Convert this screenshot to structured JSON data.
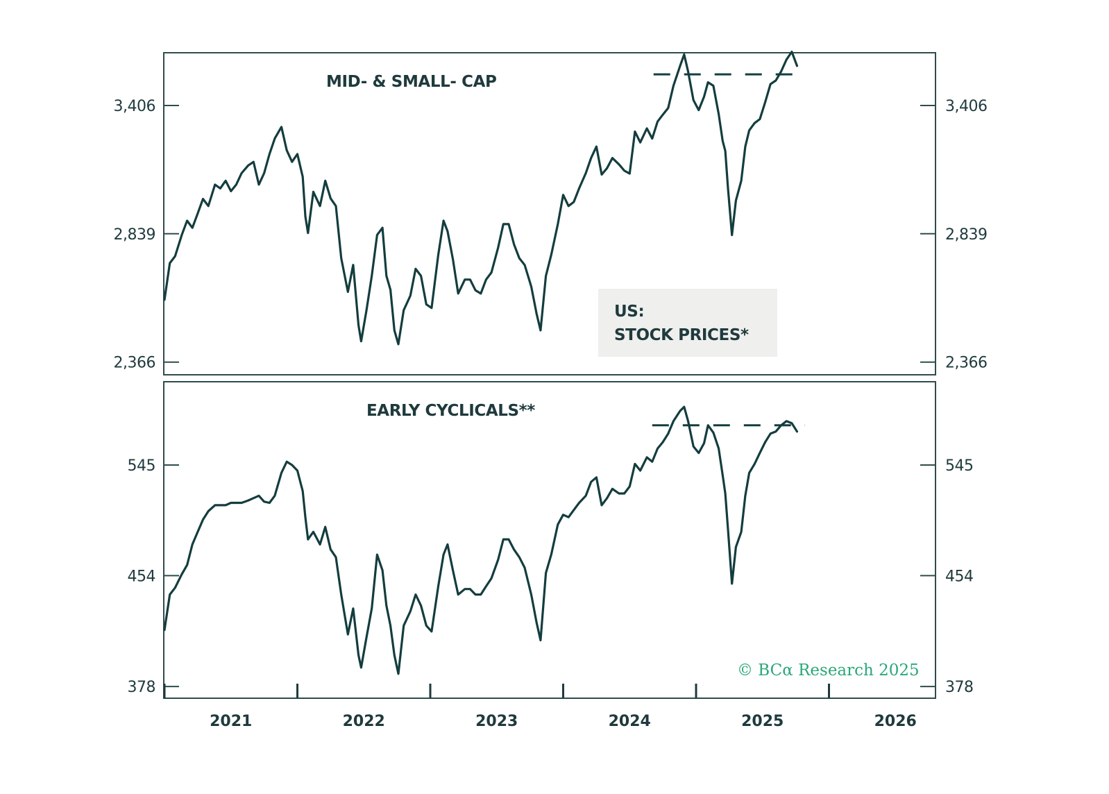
{
  "chart_data": {
    "type": "line",
    "title": "US: STOCK PRICES*",
    "xlabel": "",
    "x_ticks": [
      "2021",
      "2022",
      "2023",
      "2024",
      "2025",
      "2026"
    ],
    "x_range": [
      2021.0,
      2026.8
    ],
    "grid": false,
    "legend": "inside-right (top panel)",
    "credit": "© BCα Research 2025",
    "panels": [
      {
        "title": "MID- & SMALL- CAP",
        "yscale": "log",
        "yticks": [
          2366,
          2839,
          3406
        ],
        "ytick_labels": [
          "2,366",
          "2,839",
          "3,406"
        ],
        "ylim": [
          2366,
          3620
        ],
        "reference_line": {
          "style": "dashed",
          "value": 3560,
          "x_start": 2024.68,
          "x_end": 2025.82
        },
        "series": [
          {
            "name": "Mid- & Small-Cap",
            "x": [
              2021.0,
              2021.04,
              2021.08,
              2021.13,
              2021.17,
              2021.21,
              2021.25,
              2021.29,
              2021.33,
              2021.38,
              2021.42,
              2021.46,
              2021.5,
              2021.54,
              2021.58,
              2021.63,
              2021.67,
              2021.71,
              2021.75,
              2021.79,
              2021.83,
              2021.88,
              2021.92,
              2021.96,
              2022.0,
              2022.04,
              2022.06,
              2022.08,
              2022.12,
              2022.17,
              2022.21,
              2022.25,
              2022.29,
              2022.33,
              2022.38,
              2022.42,
              2022.46,
              2022.48,
              2022.52,
              2022.56,
              2022.6,
              2022.64,
              2022.67,
              2022.7,
              2022.73,
              2022.76,
              2022.8,
              2022.85,
              2022.89,
              2022.93,
              2022.97,
              2023.01,
              2023.06,
              2023.1,
              2023.13,
              2023.17,
              2023.21,
              2023.26,
              2023.3,
              2023.34,
              2023.38,
              2023.42,
              2023.46,
              2023.51,
              2023.55,
              2023.59,
              2023.63,
              2023.67,
              2023.71,
              2023.76,
              2023.8,
              2023.83,
              2023.87,
              2023.91,
              2023.96,
              2024.0,
              2024.04,
              2024.08,
              2024.12,
              2024.17,
              2024.21,
              2024.25,
              2024.29,
              2024.33,
              2024.37,
              2024.42,
              2024.46,
              2024.5,
              2024.54,
              2024.58,
              2024.63,
              2024.67,
              2024.71,
              2024.75,
              2024.79,
              2024.83,
              2024.88,
              2024.91,
              2024.94,
              2024.98,
              2025.02,
              2025.06,
              2025.09,
              2025.13,
              2025.17,
              2025.2,
              2025.22,
              2025.24,
              2025.27,
              2025.3,
              2025.34,
              2025.37,
              2025.4,
              2025.44,
              2025.48,
              2025.52,
              2025.56,
              2025.6,
              2025.64,
              2025.68,
              2025.72,
              2025.76
            ],
            "values": [
              2585,
              2723,
              2750,
              2834,
              2892,
              2863,
              2922,
              2983,
              2953,
              3044,
              3028,
              3061,
              3016,
              3044,
              3094,
              3128,
              3144,
              3044,
              3094,
              3179,
              3250,
              3304,
              3196,
              3144,
              3179,
              3078,
              2910,
              2842,
              3013,
              2953,
              3061,
              2985,
              2953,
              2742,
              2614,
              2716,
              2493,
              2437,
              2547,
              2674,
              2834,
              2863,
              2674,
              2622,
              2475,
              2427,
              2547,
              2600,
              2701,
              2674,
              2568,
              2555,
              2755,
              2892,
              2849,
              2738,
              2608,
              2660,
              2660,
              2620,
              2608,
              2660,
              2687,
              2783,
              2878,
              2878,
              2797,
              2742,
              2716,
              2634,
              2534,
              2475,
              2674,
              2755,
              2878,
              3000,
              2953,
              2970,
              3028,
              3094,
              3161,
              3213,
              3088,
              3116,
              3161,
              3133,
              3105,
              3092,
              3282,
              3232,
              3297,
              3250,
              3329,
              3362,
              3394,
              3503,
              3603,
              3662,
              3575,
              3432,
              3384,
              3449,
              3520,
              3503,
              3365,
              3239,
              3193,
              3028,
              2834,
              2976,
              3061,
              3213,
              3288,
              3322,
              3341,
              3422,
              3511,
              3529,
              3575,
              3635,
              3676,
              3603
            ]
          }
        ]
      },
      {
        "title": "EARLY CYCLICALS**",
        "yscale": "log",
        "yticks": [
          378,
          454,
          545
        ],
        "ytick_labels": [
          "378",
          "454",
          "545"
        ],
        "ylim": [
          378,
          600
        ],
        "reference_line": {
          "style": "dashed",
          "value": 582,
          "x_start": 2024.67,
          "x_end": 2025.82
        },
        "series": [
          {
            "name": "Early Cyclicals",
            "x": [
              2021.0,
              2021.04,
              2021.08,
              2021.13,
              2021.17,
              2021.21,
              2021.25,
              2021.29,
              2021.33,
              2021.38,
              2021.42,
              2021.46,
              2021.5,
              2021.54,
              2021.58,
              2021.63,
              2021.67,
              2021.71,
              2021.75,
              2021.79,
              2021.83,
              2021.88,
              2021.92,
              2021.96,
              2022.0,
              2022.04,
              2022.06,
              2022.08,
              2022.12,
              2022.17,
              2022.21,
              2022.25,
              2022.29,
              2022.33,
              2022.38,
              2022.42,
              2022.46,
              2022.48,
              2022.52,
              2022.56,
              2022.6,
              2022.64,
              2022.67,
              2022.7,
              2022.73,
              2022.76,
              2022.8,
              2022.85,
              2022.89,
              2022.93,
              2022.97,
              2023.01,
              2023.06,
              2023.1,
              2023.13,
              2023.17,
              2023.21,
              2023.26,
              2023.3,
              2023.34,
              2023.38,
              2023.42,
              2023.46,
              2023.51,
              2023.55,
              2023.59,
              2023.63,
              2023.67,
              2023.71,
              2023.76,
              2023.8,
              2023.83,
              2023.87,
              2023.91,
              2023.96,
              2024.0,
              2024.04,
              2024.08,
              2024.12,
              2024.17,
              2024.21,
              2024.25,
              2024.29,
              2024.33,
              2024.37,
              2024.42,
              2024.46,
              2024.5,
              2024.54,
              2024.58,
              2024.63,
              2024.67,
              2024.71,
              2024.75,
              2024.79,
              2024.83,
              2024.88,
              2024.91,
              2024.94,
              2024.98,
              2025.02,
              2025.06,
              2025.09,
              2025.13,
              2025.17,
              2025.2,
              2025.22,
              2025.24,
              2025.27,
              2025.3,
              2025.34,
              2025.37,
              2025.4,
              2025.44,
              2025.48,
              2025.52,
              2025.56,
              2025.6,
              2025.64,
              2025.68,
              2025.72,
              2025.76
            ],
            "values": [
              415,
              440,
              445,
              455,
              462,
              478,
              488,
              498,
              505,
              510,
              510,
              510,
              512,
              512,
              512,
              514,
              516,
              518,
              513,
              512,
              518,
              538,
              548,
              545,
              540,
              522,
              500,
              482,
              488,
              478,
              492,
              474,
              468,
              440,
              412,
              430,
              398,
              390,
              410,
              430,
              470,
              458,
              432,
              418,
              398,
              386,
              418,
              428,
              440,
              432,
              418,
              414,
              446,
              470,
              478,
              458,
              440,
              444,
              444,
              440,
              440,
              446,
              452,
              466,
              482,
              482,
              474,
              468,
              460,
              440,
              420,
              408,
              456,
              470,
              494,
              502,
              500,
              506,
              512,
              518,
              530,
              534,
              510,
              516,
              524,
              520,
              520,
              526,
              546,
              540,
              552,
              548,
              560,
              566,
              574,
              586,
              596,
              600,
              586,
              562,
              556,
              565,
              582,
              575,
              560,
              536,
              520,
              490,
              448,
              476,
              488,
              518,
              538,
              546,
              556,
              566,
              574,
              576,
              582,
              586,
              584,
              576
            ]
          }
        ]
      }
    ]
  },
  "labels": {
    "legend_line1": "US:",
    "legend_line2": "STOCK PRICES*",
    "credit": "© BCα Research 2025"
  }
}
